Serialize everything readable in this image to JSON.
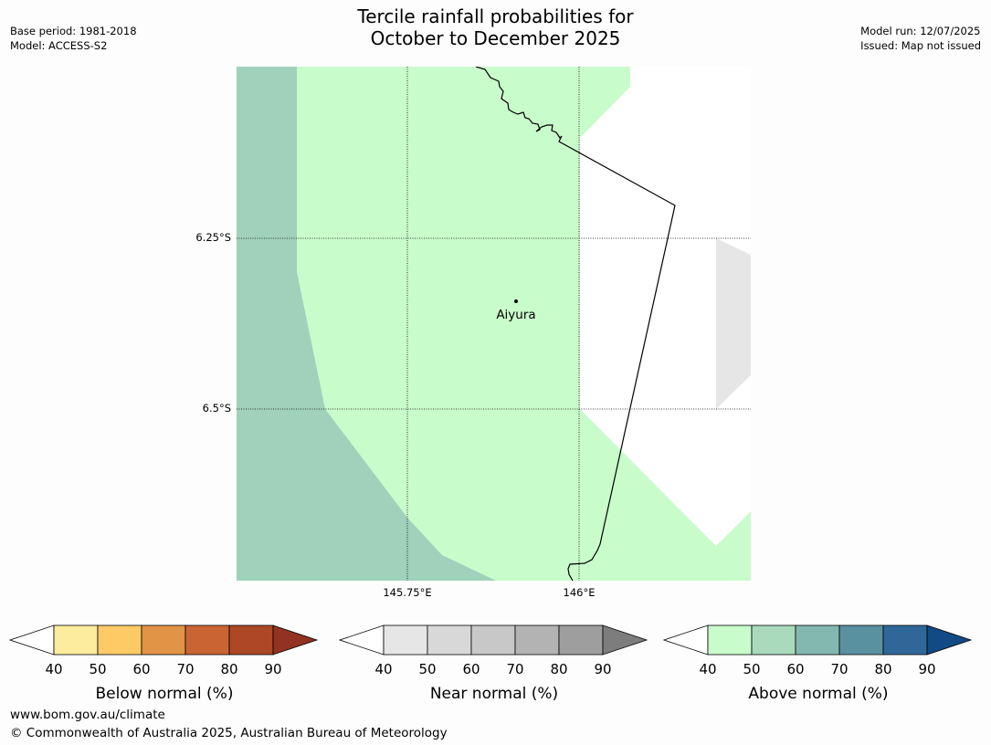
{
  "header": {
    "title_line1": "Tercile rainfall probabilities for",
    "title_line2": "October to December 2025",
    "left_line1": "Base period: 1981-2018",
    "left_line2": "Model: ACCESS-S2",
    "right_line1": "Model run: 12/07/2025",
    "right_line2": "Issued: Map not issued"
  },
  "map": {
    "place_label": "Aiyura",
    "lat_labels": [
      "6.25°S",
      "6.5°S"
    ],
    "lon_labels": [
      "145.75°E",
      "146°E"
    ],
    "colors": {
      "above_40_50": "#c9fccb",
      "above_50_60": "#9fd1bb",
      "near_40_50": "#e6e6e6",
      "background": "#ffffff"
    }
  },
  "colorbars": [
    {
      "label": "Below normal (%)",
      "ticks": [
        "40",
        "50",
        "60",
        "70",
        "80",
        "90"
      ],
      "colors": [
        "#fdeb9e",
        "#fdca66",
        "#e19346",
        "#cb6433",
        "#ad4726",
        "#923220"
      ]
    },
    {
      "label": "Near normal (%)",
      "ticks": [
        "40",
        "50",
        "60",
        "70",
        "80",
        "90"
      ],
      "colors": [
        "#e6e6e6",
        "#d8d8d8",
        "#c8c8c8",
        "#b3b3b3",
        "#9e9e9e",
        "#7d7d7d"
      ]
    },
    {
      "label": "Above normal (%)",
      "ticks": [
        "40",
        "50",
        "60",
        "70",
        "80",
        "90"
      ],
      "colors": [
        "#c9fccb",
        "#a8dabb",
        "#82b8b0",
        "#5a91a1",
        "#2f6898",
        "#114a85"
      ]
    }
  ],
  "footer": {
    "line1": "www.bom.gov.au/climate",
    "line2": "© Commonwealth of Australia 2025, Australian Bureau of Meteorology"
  }
}
